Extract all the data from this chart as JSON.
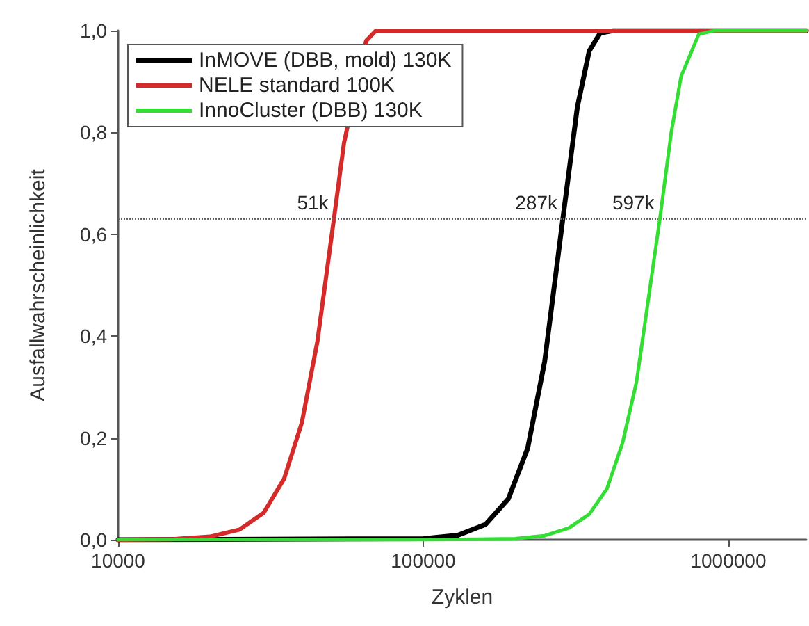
{
  "chart_data": {
    "type": "line",
    "xlabel": "Zyklen",
    "ylabel": "Ausfallwahrscheinlichkeit",
    "log": "x",
    "xlim": [
      10000,
      1800000
    ],
    "xticks": [
      10000,
      100000,
      1000000
    ],
    "ylim": [
      0,
      1
    ],
    "yticks": [
      {
        "value": 0,
        "label": "0,0"
      },
      {
        "value": 0.2,
        "label": "0,2"
      },
      {
        "value": 0.4,
        "label": "0,4"
      },
      {
        "value": 0.6,
        "label": "0,6"
      },
      {
        "value": 0.8,
        "label": "0,8"
      },
      {
        "value": 1,
        "label": "1,0"
      }
    ],
    "grid": false,
    "legend": "top left",
    "marker": "none",
    "line_style": "solid",
    "series": [
      {
        "name": "InMOVE (DBB, mold) 130K",
        "color": "#000000",
        "x": [
          10000,
          100000,
          130000,
          160000,
          190000,
          220000,
          250000,
          287000,
          320000,
          350000,
          380000,
          420000,
          1800000
        ],
        "values": [
          0,
          0.002,
          0.009,
          0.03,
          0.08,
          0.18,
          0.35,
          0.632,
          0.85,
          0.96,
          0.995,
          1,
          1
        ]
      },
      {
        "name": "NELE standard 100K",
        "color": "#d42a2a",
        "x": [
          10000,
          15000,
          20000,
          25000,
          30000,
          35000,
          40000,
          45000,
          51000,
          55000,
          60000,
          65000,
          70000,
          1800000
        ],
        "values": [
          0,
          0.001,
          0.006,
          0.02,
          0.053,
          0.12,
          0.23,
          0.39,
          0.632,
          0.78,
          null,
          0.98,
          1,
          1
        ]
      },
      {
        "name": "InnoCluster (DBB) 130K",
        "color": "#33dd33",
        "x": [
          10000,
          100000,
          150000,
          200000,
          250000,
          300000,
          350000,
          400000,
          450000,
          500000,
          597000,
          650000,
          700000,
          800000,
          900000,
          1800000
        ],
        "values": [
          0,
          0,
          0.001,
          0.002,
          0.008,
          0.023,
          0.05,
          0.1,
          0.19,
          0.31,
          0.632,
          0.8,
          0.91,
          0.993,
          1,
          1
        ]
      }
    ],
    "ref_lines": [
      {
        "axis": "y",
        "value": 0.632,
        "color": "#666666",
        "line_style": "dotted"
      }
    ],
    "annotations": [
      {
        "text": "51k",
        "x": 51000,
        "y": 0.632
      },
      {
        "text": "287k",
        "x": 287000,
        "y": 0.632
      },
      {
        "text": "597k",
        "x": 597000,
        "y": 0.632
      }
    ]
  }
}
